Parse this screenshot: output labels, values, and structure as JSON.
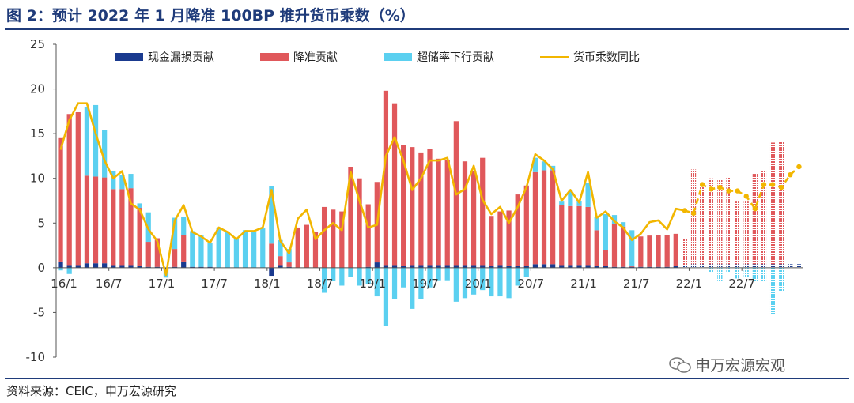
{
  "title": "图 2：预计 2022 年 1 月降准 100BP 推升货币乘数（%）",
  "source": "资料来源：CEIC，申万宏源研究",
  "watermark": "申万宏源宏观",
  "colors": {
    "cash_leak": "#1a3a8f",
    "rrr": "#e0585b",
    "excess": "#5bd0f0",
    "line": "#f2b600",
    "axis_text": "#333333",
    "frame": "#1f3b7a"
  },
  "chart_data": {
    "type": "bar",
    "stacked": true,
    "ylim": [
      -10,
      25
    ],
    "yticks": [
      -10,
      -5,
      0,
      5,
      10,
      15,
      20,
      25
    ],
    "grid": false,
    "legend_position": "top",
    "x_tick_labels": [
      "16/1",
      "16/7",
      "17/1",
      "17/7",
      "18/1",
      "18/7",
      "19/1",
      "19/7",
      "20/1",
      "20/7",
      "21/1",
      "21/7",
      "22/1",
      "22/7"
    ],
    "x_tick_indices": [
      0,
      6,
      12,
      18,
      24,
      30,
      36,
      42,
      48,
      54,
      60,
      66,
      72,
      78
    ],
    "periods": 85,
    "forecast_from_index": 71,
    "series": [
      {
        "name": "现金漏损贡献",
        "type": "bar",
        "values": [
          0.7,
          0.3,
          0.3,
          0.5,
          0.5,
          0.5,
          0.3,
          0.3,
          0.3,
          0.2,
          0.1,
          0.1,
          -0.3,
          0.1,
          0.7,
          0.1,
          0.1,
          0.1,
          0.0,
          0.0,
          0.0,
          0.0,
          0.0,
          0.0,
          -0.9,
          0.3,
          0.1,
          0.0,
          0.0,
          0.0,
          0.0,
          0.0,
          0.0,
          0.0,
          0.0,
          0.1,
          0.6,
          0.3,
          0.3,
          0.2,
          0.3,
          0.3,
          0.3,
          0.3,
          0.3,
          0.3,
          0.3,
          0.3,
          0.3,
          0.2,
          0.3,
          0.2,
          0.2,
          0.2,
          0.4,
          0.4,
          0.4,
          0.3,
          0.3,
          0.3,
          0.3,
          0.2,
          0.2,
          0.1,
          0.1,
          0.1,
          0.1,
          0.1,
          0.1,
          0.1,
          0.2,
          0.2,
          0.4,
          0.4,
          0.4,
          0.4,
          0.4,
          0.4,
          0.4,
          0.4,
          0.4,
          0.4,
          0.4,
          0.4,
          0.4
        ]
      },
      {
        "name": "降准贡献",
        "type": "bar",
        "values": [
          13.8,
          16.9,
          17.1,
          9.8,
          9.7,
          9.6,
          8.5,
          8.5,
          8.6,
          6.5,
          2.8,
          3.2,
          0.0,
          2.0,
          3.0,
          0.0,
          0.0,
          0.0,
          0.0,
          0.0,
          0.0,
          0.0,
          0.0,
          0.0,
          2.7,
          1.0,
          0.5,
          4.5,
          4.8,
          4.0,
          6.8,
          6.5,
          6.3,
          11.3,
          10.0,
          7.0,
          9.0,
          19.5,
          18.1,
          13.5,
          13.2,
          12.6,
          13.0,
          11.9,
          11.8,
          16.1,
          11.6,
          10.5,
          12.0,
          5.6,
          6.0,
          6.2,
          8.0,
          9.0,
          10.3,
          10.5,
          10.5,
          6.7,
          6.6,
          6.6,
          6.5,
          4.0,
          1.8,
          4.8,
          4.5,
          0.1,
          3.4,
          3.5,
          3.6,
          3.6,
          3.6,
          3.0,
          10.6,
          8.8,
          9.6,
          9.4,
          9.7,
          7.0,
          7.0,
          10.1,
          10.4,
          13.6,
          13.8,
          0.0,
          0.0
        ]
      },
      {
        "name": "超储率下行贡献",
        "type": "bar",
        "values": [
          -0.3,
          -0.7,
          0.0,
          7.7,
          8.0,
          5.3,
          2.0,
          1.6,
          1.6,
          0.5,
          3.3,
          0.0,
          -0.8,
          3.5,
          2.0,
          4.0,
          3.5,
          2.7,
          4.5,
          4.0,
          3.2,
          4.2,
          4.0,
          4.4,
          6.4,
          1.8,
          1.5,
          0.0,
          0.0,
          0.0,
          -2.8,
          -1.5,
          -2.0,
          -1.0,
          -2.0,
          -1.8,
          -3.2,
          -6.5,
          -3.5,
          -2.2,
          -4.6,
          -3.5,
          -2.2,
          -1.4,
          -1.4,
          -3.8,
          -3.4,
          -3.0,
          -2.5,
          -3.2,
          -3.2,
          -3.4,
          -2.0,
          -1.0,
          1.6,
          1.0,
          0.5,
          0.4,
          1.7,
          0.6,
          2.7,
          1.5,
          4.0,
          1.0,
          0.5,
          4.0,
          0.0,
          0.0,
          0.0,
          0.0,
          0.0,
          0.0,
          0.0,
          0.0,
          -0.6,
          -1.5,
          -0.5,
          -1.2,
          -1.0,
          -1.5,
          -1.6,
          -5.2,
          -2.7,
          0.0,
          0.0
        ]
      },
      {
        "name": "货币乘数同比",
        "type": "line",
        "values": [
          13.2,
          16.5,
          18.4,
          18.4,
          15.0,
          12.0,
          10.0,
          10.8,
          7.2,
          6.5,
          4.3,
          3.0,
          -0.8,
          5.3,
          7.0,
          4.0,
          3.5,
          2.8,
          4.5,
          4.0,
          3.2,
          4.1,
          4.1,
          4.5,
          8.7,
          3.0,
          1.6,
          5.5,
          6.5,
          3.2,
          4.2,
          5.0,
          4.2,
          10.7,
          7.5,
          4.5,
          4.8,
          12.5,
          14.6,
          12.0,
          8.7,
          10.0,
          12.0,
          12.0,
          12.3,
          8.2,
          8.8,
          11.4,
          7.6,
          6.0,
          6.8,
          5.0,
          6.8,
          9.0,
          12.7,
          12.0,
          11.0,
          7.5,
          8.7,
          7.3,
          10.7,
          5.6,
          6.3,
          5.2,
          4.5,
          3.1,
          3.8,
          5.1,
          5.3,
          4.3,
          6.6,
          6.4,
          6.1,
          9.3,
          8.8,
          9.0,
          8.6,
          8.6,
          8.0,
          6.6,
          9.3,
          9.3,
          9.0,
          10.4,
          11.3
        ]
      }
    ]
  }
}
